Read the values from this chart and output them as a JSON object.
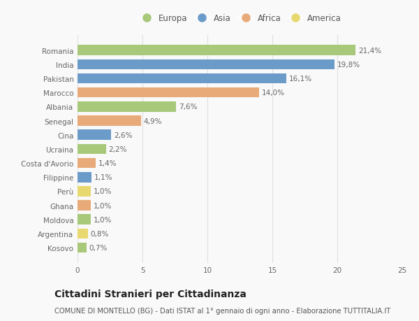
{
  "countries": [
    "Romania",
    "India",
    "Pakistan",
    "Marocco",
    "Albania",
    "Senegal",
    "Cina",
    "Ucraina",
    "Costa d'Avorio",
    "Filippine",
    "Perù",
    "Ghana",
    "Moldova",
    "Argentina",
    "Kosovo"
  ],
  "values": [
    21.4,
    19.8,
    16.1,
    14.0,
    7.6,
    4.9,
    2.6,
    2.2,
    1.4,
    1.1,
    1.0,
    1.0,
    1.0,
    0.8,
    0.7
  ],
  "labels": [
    "21,4%",
    "19,8%",
    "16,1%",
    "14,0%",
    "7,6%",
    "4,9%",
    "2,6%",
    "2,2%",
    "1,4%",
    "1,1%",
    "1,0%",
    "1,0%",
    "1,0%",
    "0,8%",
    "0,7%"
  ],
  "continents": [
    "Europa",
    "Asia",
    "Asia",
    "Africa",
    "Europa",
    "Africa",
    "Asia",
    "Europa",
    "Africa",
    "Asia",
    "America",
    "Africa",
    "Europa",
    "America",
    "Europa"
  ],
  "continent_colors": {
    "Europa": "#a8c87a",
    "Asia": "#6b9bc8",
    "Africa": "#e8aa78",
    "America": "#e8d870"
  },
  "legend_order": [
    "Europa",
    "Asia",
    "Africa",
    "America"
  ],
  "title": "Cittadini Stranieri per Cittadinanza",
  "subtitle": "COMUNE DI MONTELLO (BG) - Dati ISTAT al 1° gennaio di ogni anno - Elaborazione TUTTITALIA.IT",
  "xlim": [
    0,
    25
  ],
  "xticks": [
    0,
    5,
    10,
    15,
    20,
    25
  ],
  "background_color": "#f9f9f9",
  "grid_color": "#e0e0e0",
  "bar_height": 0.72,
  "label_fontsize": 7.5,
  "tick_fontsize": 7.5,
  "title_fontsize": 10,
  "subtitle_fontsize": 7.2,
  "label_color": "#666666",
  "tick_color": "#666666"
}
